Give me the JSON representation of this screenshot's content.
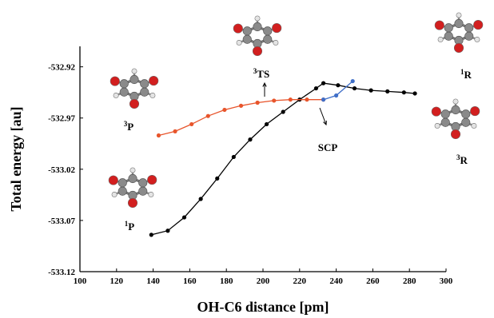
{
  "chart_data": {
    "type": "line",
    "xlabel": "OH-C6 distance [pm]",
    "ylabel": "Total energy [au]",
    "xlim": [
      100,
      300
    ],
    "ylim": [
      -533.12,
      -532.9
    ],
    "xticks": [
      100,
      120,
      140,
      160,
      180,
      200,
      220,
      240,
      260,
      280,
      300
    ],
    "yticks": [
      -533.12,
      -533.07,
      -533.02,
      -532.97,
      -532.92
    ],
    "xtick_labels": [
      "100",
      "120",
      "140",
      "160",
      "180",
      "200",
      "220",
      "240",
      "260",
      "280",
      "300"
    ],
    "ytick_labels": [
      "-533.12",
      "-533.07",
      "-533.02",
      "-532.97",
      "-532.92"
    ],
    "grid": false,
    "series": [
      {
        "color": "#000000",
        "x": [
          139,
          148,
          157,
          166,
          175,
          184,
          193,
          202,
          211,
          220,
          229,
          233,
          241,
          250,
          259,
          268,
          277,
          283
        ],
        "y": [
          -533.084,
          -533.08,
          -533.067,
          -533.049,
          -533.029,
          -533.008,
          -532.991,
          -532.976,
          -532.964,
          -532.952,
          -532.941,
          -532.936,
          -532.938,
          -532.941,
          -532.943,
          -532.944,
          -532.945,
          -532.946
        ]
      },
      {
        "color": "#e8552c",
        "x": [
          143,
          152,
          161,
          170,
          179,
          188,
          197,
          206,
          215,
          224,
          233
        ],
        "y": [
          -532.987,
          -532.983,
          -532.976,
          -532.968,
          -532.962,
          -532.958,
          -532.955,
          -532.953,
          -532.952,
          -532.952,
          -532.952
        ]
      },
      {
        "color": "#3f6fc8",
        "x": [
          233,
          240,
          249
        ],
        "y": [
          -532.952,
          -532.948,
          -532.934
        ]
      }
    ],
    "annotations": [
      {
        "id": "3TS",
        "sup": "3",
        "label": "TS"
      },
      {
        "id": "SCP",
        "sup": "",
        "label": "SCP"
      },
      {
        "id": "3P",
        "sup": "3",
        "label": "P"
      },
      {
        "id": "1P",
        "sup": "1",
        "label": "P"
      },
      {
        "id": "1R",
        "sup": "1",
        "label": "R"
      },
      {
        "id": "3R",
        "sup": "3",
        "label": "R"
      }
    ]
  },
  "colors": {
    "carbon": "#8a8a8a",
    "oxygen": "#d21f1f",
    "hydrogen": "#e4e4e4"
  }
}
